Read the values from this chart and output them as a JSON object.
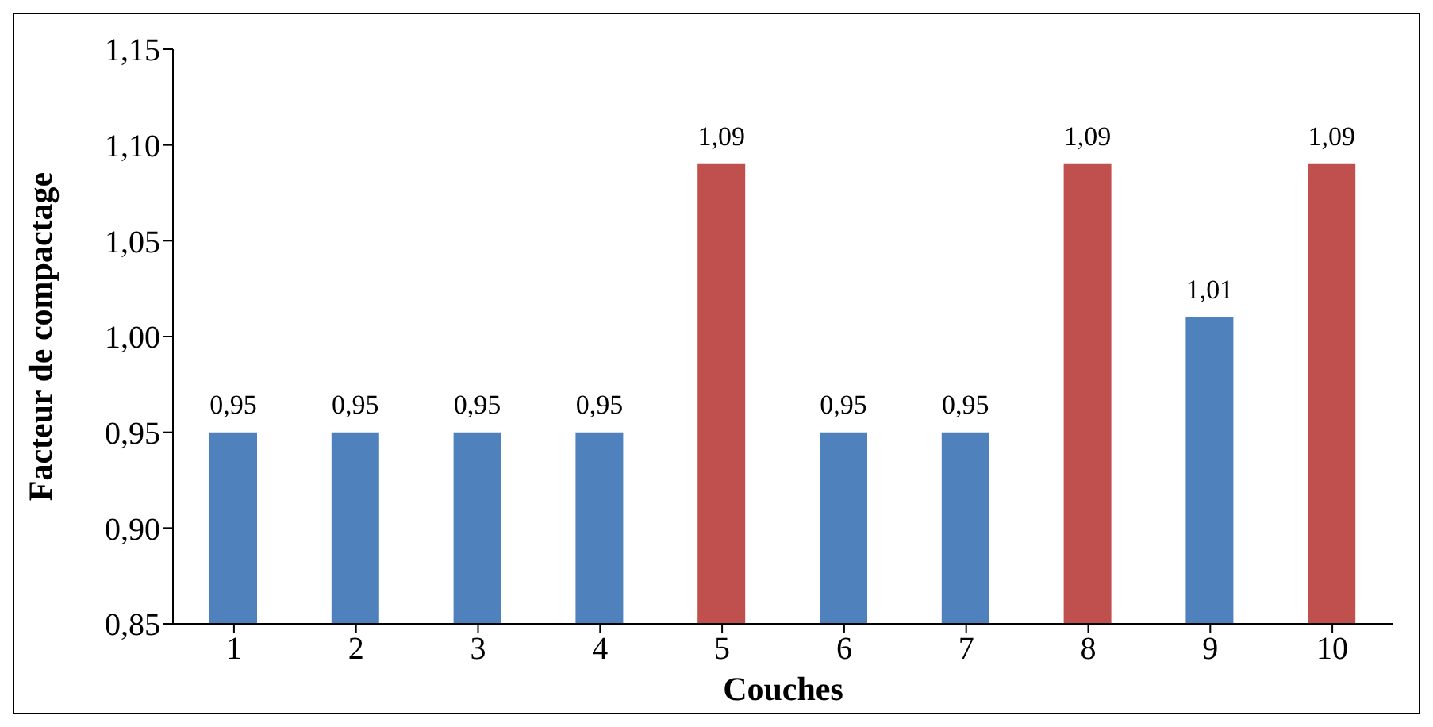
{
  "chart_data": {
    "type": "bar",
    "xlabel": "Couches",
    "ylabel": "Facteur de compactage",
    "categories": [
      "1",
      "2",
      "3",
      "4",
      "5",
      "6",
      "7",
      "8",
      "9",
      "10"
    ],
    "values": [
      0.95,
      0.95,
      0.95,
      0.95,
      1.09,
      0.95,
      0.95,
      1.09,
      1.01,
      1.09
    ],
    "colors": [
      "#4f81bd",
      "#4f81bd",
      "#4f81bd",
      "#4f81bd",
      "#c0504d",
      "#4f81bd",
      "#4f81bd",
      "#c0504d",
      "#4f81bd",
      "#c0504d"
    ],
    "value_labels": [
      "0,95",
      "0,95",
      "0,95",
      "0,95",
      "1,09",
      "0,95",
      "0,95",
      "1,09",
      "1,01",
      "1,09"
    ],
    "ylim": [
      0.85,
      1.15
    ],
    "yticks": [
      {
        "value": 0.85,
        "label": "0,85"
      },
      {
        "value": 0.9,
        "label": "0,90"
      },
      {
        "value": 0.95,
        "label": "0,95"
      },
      {
        "value": 1.0,
        "label": "1,00"
      },
      {
        "value": 1.05,
        "label": "1,05"
      },
      {
        "value": 1.1,
        "label": "1,10"
      },
      {
        "value": 1.15,
        "label": "1,15"
      }
    ],
    "grid": false
  }
}
